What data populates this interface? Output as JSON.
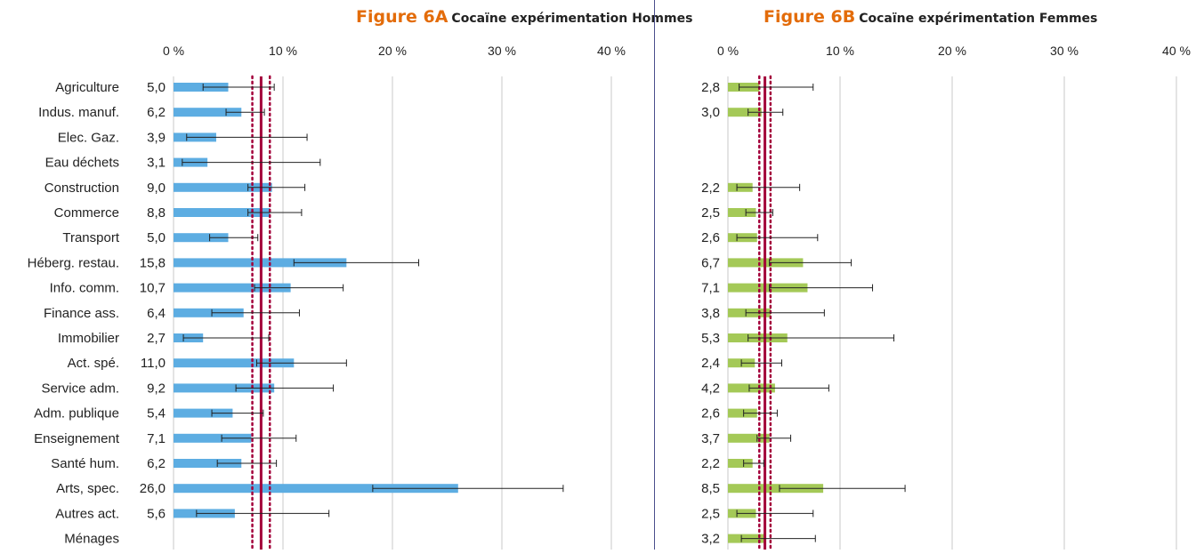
{
  "chart_data": [
    {
      "type": "bar",
      "orientation": "horizontal",
      "figure_label": "Figure 6A",
      "title": "Cocaïne expérimentation Hommes",
      "xlim": [
        0,
        40
      ],
      "xticks": [
        "0 %",
        "10 %",
        "20 %",
        "30 %",
        "40 %"
      ],
      "grid": true,
      "bar_color": "#5dade2",
      "reference_color": "#a3003a",
      "reference": {
        "value": 8.0,
        "ci_low": 7.2,
        "ci_high": 8.8
      },
      "categories": [
        "Agriculture",
        "Indus. manuf.",
        "Elec. Gaz.",
        "Eau déchets",
        "Construction",
        "Commerce",
        "Transport",
        "Héberg. restau.",
        "Info. comm.",
        "Finance ass.",
        "Immobilier",
        "Act. spé.",
        "Service adm.",
        "Adm. publique",
        "Enseignement",
        "Santé hum.",
        "Arts, spec.",
        "Autres act.",
        "Ménages"
      ],
      "values": [
        5.0,
        6.2,
        3.9,
        3.1,
        9.0,
        8.8,
        5.0,
        15.8,
        10.7,
        6.4,
        2.7,
        11.0,
        9.2,
        5.4,
        7.1,
        6.2,
        26.0,
        5.6,
        null
      ],
      "value_labels": [
        "5,0",
        "6,2",
        "3,9",
        "3,1",
        "9,0",
        "8,8",
        "5,0",
        "15,8",
        "10,7",
        "6,4",
        "2,7",
        "11,0",
        "9,2",
        "5,4",
        "7,1",
        "6,2",
        "26,0",
        "5,6",
        ""
      ],
      "ci_low": [
        2.7,
        4.8,
        1.2,
        0.8,
        6.8,
        6.8,
        3.3,
        11.0,
        7.4,
        3.5,
        0.9,
        7.6,
        5.7,
        3.5,
        4.4,
        4.0,
        18.2,
        2.1,
        null
      ],
      "ci_high": [
        9.2,
        8.3,
        12.2,
        13.4,
        12.0,
        11.7,
        7.7,
        22.4,
        15.5,
        11.5,
        8.7,
        15.8,
        14.6,
        8.2,
        11.2,
        9.4,
        35.6,
        14.2,
        null
      ]
    },
    {
      "type": "bar",
      "orientation": "horizontal",
      "figure_label": "Figure 6B",
      "title": "Cocaïne expérimentation Femmes",
      "xlim": [
        0,
        40
      ],
      "xticks": [
        "0 %",
        "10 %",
        "20 %",
        "30 %",
        "40 %"
      ],
      "grid": true,
      "bar_color": "#a4c957",
      "reference_color": "#a3003a",
      "reference": {
        "value": 3.3,
        "ci_low": 2.8,
        "ci_high": 3.8
      },
      "categories": [
        "Agriculture",
        "Indus. manuf.",
        "Elec. Gaz.",
        "Eau déchets",
        "Construction",
        "Commerce",
        "Transport",
        "Héberg. restau.",
        "Info. comm.",
        "Finance ass.",
        "Immobilier",
        "Act. spé.",
        "Service adm.",
        "Adm. publique",
        "Enseignement",
        "Santé hum.",
        "Arts, spec.",
        "Autres act.",
        "Ménages"
      ],
      "values": [
        2.8,
        3.0,
        null,
        null,
        2.2,
        2.5,
        2.6,
        6.7,
        7.1,
        3.8,
        5.3,
        2.4,
        4.2,
        2.6,
        3.7,
        2.2,
        8.5,
        2.5,
        3.2
      ],
      "value_labels": [
        "2,8",
        "3,0",
        "",
        "",
        "2,2",
        "2,5",
        "2,6",
        "6,7",
        "7,1",
        "3,8",
        "5,3",
        "2,4",
        "4,2",
        "2,6",
        "3,7",
        "2,2",
        "8,5",
        "2,5",
        "3,2"
      ],
      "ci_low": [
        1.0,
        1.8,
        null,
        null,
        0.8,
        1.6,
        0.8,
        3.7,
        3.7,
        1.6,
        1.8,
        1.2,
        1.9,
        1.4,
        2.6,
        1.4,
        4.6,
        0.8,
        1.2
      ],
      "ci_high": [
        7.6,
        4.9,
        null,
        null,
        6.4,
        4.0,
        8.0,
        11.0,
        12.9,
        8.6,
        14.8,
        4.8,
        9.0,
        4.4,
        5.6,
        3.2,
        15.8,
        7.6,
        7.8
      ]
    }
  ]
}
